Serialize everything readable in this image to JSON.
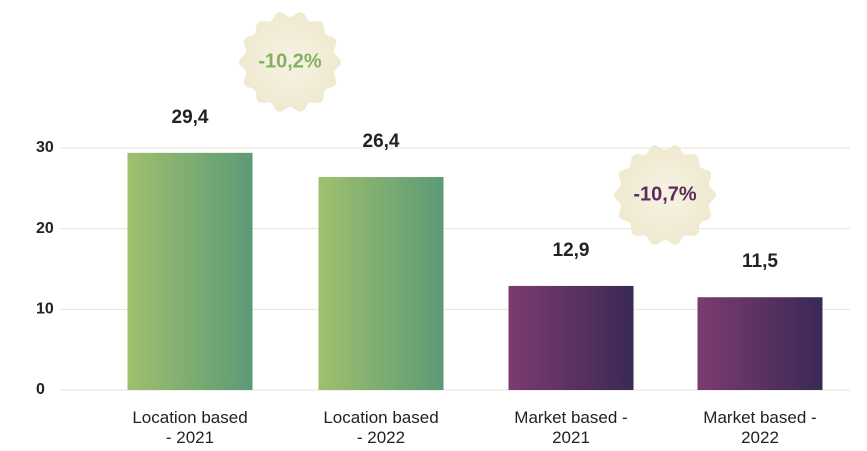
{
  "chart_data": {
    "type": "bar",
    "categories": [
      "Location based - 2021",
      "Location based - 2022",
      "Market based - 2021",
      "Market based - 2022"
    ],
    "values": [
      29.4,
      26.4,
      12.9,
      11.5
    ],
    "value_labels": [
      "29,4",
      "26,4",
      "12,9",
      "11,5"
    ],
    "colors": [
      [
        "#9fc06e",
        "#5c9a76"
      ],
      [
        "#9fc06e",
        "#5c9a76"
      ],
      [
        "#7c3b6f",
        "#3a2955"
      ],
      [
        "#7c3b6f",
        "#3a2955"
      ]
    ],
    "ylim": [
      0,
      30
    ],
    "yticks": [
      0,
      10,
      20,
      30
    ],
    "grid": true,
    "annotations": [
      {
        "text": "-10,2%",
        "color": "#86b061"
      },
      {
        "text": "-10,7%",
        "color": "#5e2a5c"
      }
    ]
  }
}
